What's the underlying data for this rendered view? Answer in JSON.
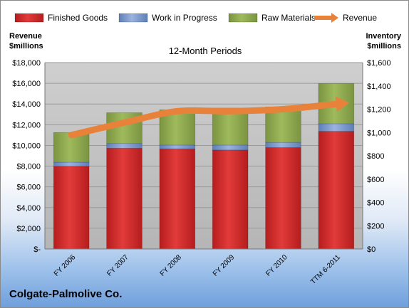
{
  "chart_data": {
    "type": "bar",
    "stacked": true,
    "subtitle": "12-Month Periods",
    "categories": [
      "FY 2006",
      "FY 2007",
      "FY 2008",
      "FY 2009",
      "FY 2010",
      "TTM 6-2011"
    ],
    "series": [
      {
        "name": "Finished Goods",
        "axis": "right",
        "color": "#d42a2a",
        "values": [
          710,
          865,
          860,
          850,
          870,
          1010
        ]
      },
      {
        "name": "Work in Progress",
        "axis": "right",
        "color": "#6f8fc7",
        "values": [
          35,
          40,
          32,
          42,
          45,
          65
        ]
      },
      {
        "name": "Raw Materials",
        "axis": "right",
        "color": "#8fa94e",
        "values": [
          255,
          265,
          303,
          318,
          305,
          345
        ]
      },
      {
        "name": "Revenue",
        "type": "line",
        "axis": "left",
        "color": "#e8823a",
        "values": [
          11000,
          12200,
          13300,
          13300,
          13500,
          14000
        ]
      }
    ],
    "y_left": {
      "label": "Revenue $millions",
      "range": [
        0,
        18000
      ],
      "ticks": [
        "$18,000",
        "$16,000",
        "$14,000",
        "$12,000",
        "$10,000",
        "$8,000",
        "$6,000",
        "$4,000",
        "$2,000",
        "$-"
      ]
    },
    "y_right": {
      "label": "Inventory $millions",
      "range": [
        0,
        1600
      ],
      "ticks": [
        "$1,600",
        "$1,400",
        "$1,200",
        "$1,000",
        "$800",
        "$600",
        "$400",
        "$200",
        "$0"
      ]
    },
    "legend_position": "top",
    "grid": true
  },
  "labels": {
    "y_left_title_1": "Revenue",
    "y_left_title_2": "$millions",
    "y_right_title_1": "Inventory",
    "y_right_title_2": "$millions",
    "company": "Colgate-Palmolive Co."
  }
}
